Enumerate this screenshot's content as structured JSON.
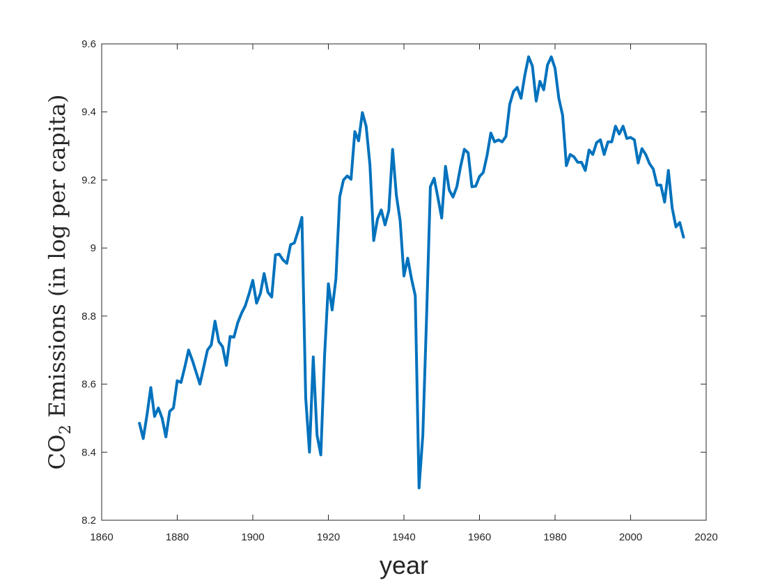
{
  "chart_data": {
    "type": "line",
    "xlabel": "year",
    "ylabel": {
      "prefix": "CO",
      "subscript": "2",
      "suffix": " Emissions (in log per capita)"
    },
    "xlim": [
      1860,
      2020
    ],
    "ylim": [
      8.2,
      9.6
    ],
    "xticks": [
      1860,
      1880,
      1900,
      1920,
      1940,
      1960,
      1980,
      2000,
      2020
    ],
    "yticks": [
      8.2,
      8.4,
      8.6,
      8.8,
      9,
      9.2,
      9.4,
      9.6
    ],
    "grid": false,
    "series": [
      {
        "color": "#0072BD",
        "x": [
          1870,
          1871,
          1872,
          1873,
          1874,
          1875,
          1876,
          1877,
          1878,
          1879,
          1880,
          1881,
          1882,
          1883,
          1884,
          1885,
          1886,
          1887,
          1888,
          1889,
          1890,
          1891,
          1892,
          1893,
          1894,
          1895,
          1896,
          1897,
          1898,
          1899,
          1900,
          1901,
          1902,
          1903,
          1904,
          1905,
          1906,
          1907,
          1908,
          1909,
          1910,
          1911,
          1912,
          1913,
          1914,
          1915,
          1916,
          1917,
          1918,
          1919,
          1920,
          1921,
          1922,
          1923,
          1924,
          1925,
          1926,
          1927,
          1928,
          1929,
          1930,
          1931,
          1932,
          1933,
          1934,
          1935,
          1936,
          1937,
          1938,
          1939,
          1940,
          1941,
          1942,
          1943,
          1944,
          1945,
          1946,
          1947,
          1948,
          1949,
          1950,
          1951,
          1952,
          1953,
          1954,
          1955,
          1956,
          1957,
          1958,
          1959,
          1960,
          1961,
          1962,
          1963,
          1964,
          1965,
          1966,
          1967,
          1968,
          1969,
          1970,
          1971,
          1972,
          1973,
          1974,
          1975,
          1976,
          1977,
          1978,
          1979,
          1980,
          1981,
          1982,
          1983,
          1984,
          1985,
          1986,
          1987,
          1988,
          1989,
          1990,
          1991,
          1992,
          1993,
          1994,
          1995,
          1996,
          1997,
          1998,
          1999,
          2000,
          2001,
          2002,
          2003,
          2004,
          2005,
          2006,
          2007,
          2008,
          2009,
          2010,
          2011,
          2012,
          2013,
          2014
        ],
        "y": [
          8.485,
          8.44,
          8.51,
          8.59,
          8.505,
          8.53,
          8.5,
          8.445,
          8.52,
          8.53,
          8.61,
          8.605,
          8.65,
          8.7,
          8.67,
          8.635,
          8.6,
          8.65,
          8.7,
          8.715,
          8.785,
          8.725,
          8.71,
          8.655,
          8.74,
          8.738,
          8.78,
          8.808,
          8.83,
          8.865,
          8.905,
          8.838,
          8.866,
          8.925,
          8.87,
          8.856,
          8.98,
          8.982,
          8.965,
          8.955,
          9.01,
          9.015,
          9.05,
          9.09,
          8.56,
          8.4,
          8.68,
          8.45,
          8.392,
          8.685,
          8.895,
          8.818,
          8.91,
          9.15,
          9.2,
          9.212,
          9.202,
          9.342,
          9.315,
          9.398,
          9.358,
          9.245,
          9.022,
          9.085,
          9.112,
          9.068,
          9.11,
          9.29,
          9.155,
          9.08,
          8.918,
          8.97,
          8.91,
          8.86,
          8.295,
          8.45,
          8.8,
          9.18,
          9.205,
          9.148,
          9.088,
          9.24,
          9.17,
          9.15,
          9.18,
          9.24,
          9.29,
          9.28,
          9.18,
          9.182,
          9.21,
          9.222,
          9.272,
          9.338,
          9.312,
          9.318,
          9.312,
          9.328,
          9.422,
          9.46,
          9.472,
          9.44,
          9.508,
          9.562,
          9.535,
          9.432,
          9.49,
          9.465,
          9.538,
          9.562,
          9.528,
          9.44,
          9.39,
          9.242,
          9.275,
          9.268,
          9.252,
          9.252,
          9.228,
          9.288,
          9.275,
          9.31,
          9.318,
          9.275,
          9.312,
          9.312,
          9.358,
          9.335,
          9.358,
          9.322,
          9.325,
          9.318,
          9.25,
          9.292,
          9.275,
          9.248,
          9.232,
          9.185,
          9.185,
          9.135,
          9.228,
          9.118,
          9.062,
          9.075,
          9.032
        ]
      }
    ]
  }
}
